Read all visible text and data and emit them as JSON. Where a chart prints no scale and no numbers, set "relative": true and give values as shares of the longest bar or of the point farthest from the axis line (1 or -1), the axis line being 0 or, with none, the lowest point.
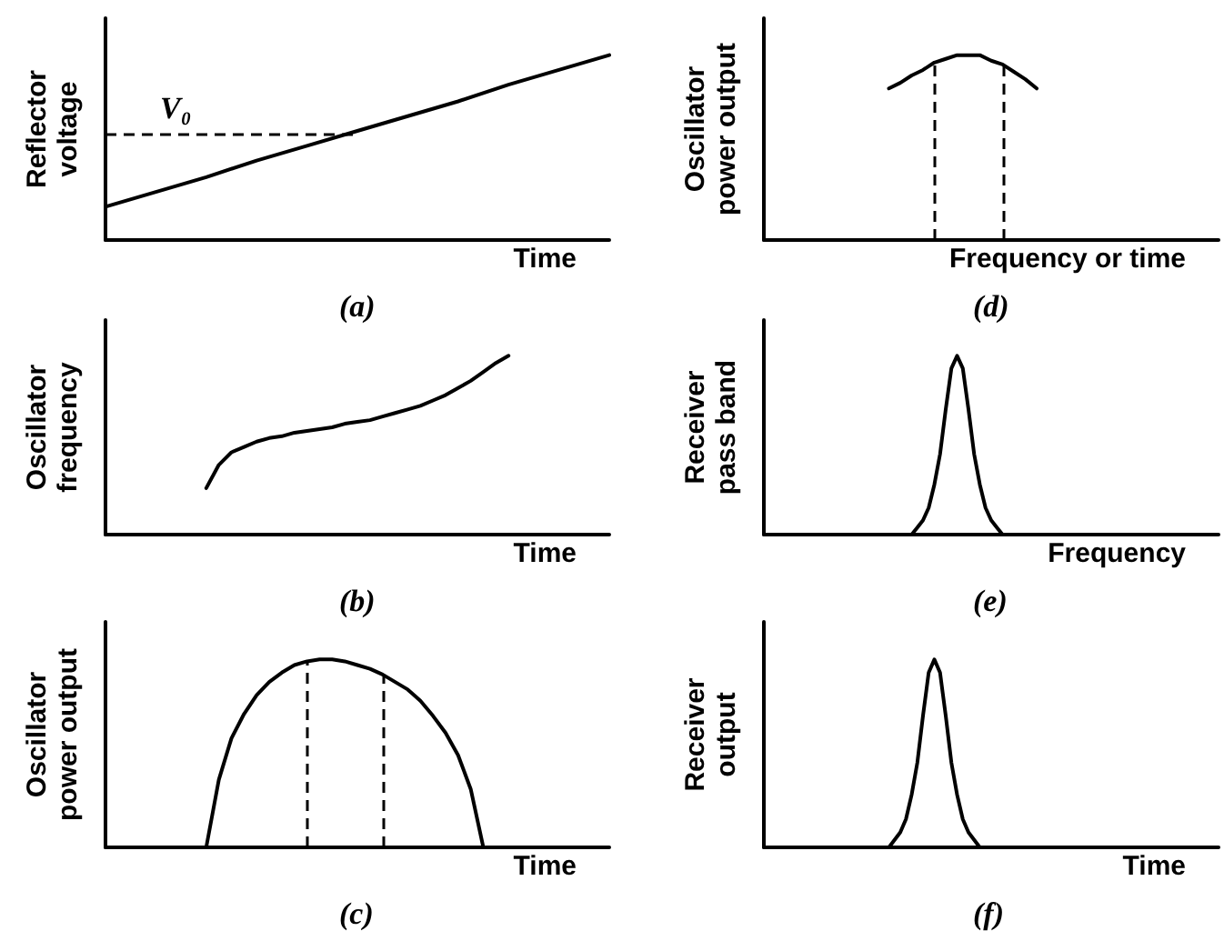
{
  "chart_data": [
    {
      "type": "line",
      "relative": true,
      "marker": "none",
      "ylabel": "Reflector voltage",
      "xlabel": "Time",
      "annotations": [
        "(a)"
      ],
      "categories": [
        null,
        null,
        null,
        null,
        null,
        null,
        null,
        null,
        null,
        null,
        null
      ],
      "series": [
        {
          "color": "#000000",
          "values": [
            0.18,
            0.26,
            0.34,
            0.43,
            0.51,
            0.59,
            0.67,
            0.75,
            0.84,
            0.92,
            1
          ]
        }
      ],
      "ref_lines": [
        {
          "axis": "y",
          "value": 0.57,
          "label": "V₀",
          "line_style": "dashed"
        }
      ]
    },
    {
      "type": "line",
      "relative": true,
      "marker": "none",
      "ylabel": "Oscillator frequency",
      "xlabel": "Time",
      "annotations": [
        "(b)"
      ],
      "categories": [
        null,
        null,
        null,
        null,
        null,
        null,
        null,
        null,
        null,
        null,
        null,
        null,
        null,
        null,
        null,
        null,
        null,
        null,
        null,
        null,
        null,
        null,
        null,
        null,
        null,
        null,
        null,
        null,
        null,
        null,
        null,
        null,
        null,
        null,
        null,
        null,
        null,
        null,
        null,
        null,
        null
      ],
      "series": [
        {
          "color": "#000000",
          "values": [
            null,
            null,
            null,
            null,
            null,
            null,
            null,
            null,
            0.26,
            0.39,
            0.46,
            0.49,
            0.52,
            0.54,
            0.55,
            0.57,
            0.58,
            0.59,
            0.6,
            0.62,
            0.63,
            0.64,
            0.66,
            0.68,
            0.7,
            0.72,
            0.75,
            0.78,
            0.82,
            0.86,
            0.91,
            0.96,
            1,
            null,
            null,
            null,
            null,
            null,
            null,
            null,
            null
          ]
        }
      ]
    },
    {
      "type": "line",
      "relative": true,
      "marker": "none",
      "ylabel": "Oscillator power output",
      "xlabel": "Time",
      "annotations": [
        "(c)"
      ],
      "categories": [
        null,
        null,
        null,
        null,
        null,
        null,
        null,
        null,
        null,
        null,
        null,
        null,
        null,
        null,
        null,
        null,
        null,
        null,
        null,
        null,
        null,
        null,
        null,
        null,
        null,
        null,
        null,
        null,
        null,
        null,
        null,
        null,
        null,
        null,
        null,
        null,
        null,
        null,
        null,
        null,
        null
      ],
      "series": [
        {
          "color": "#000000",
          "values": [
            null,
            null,
            null,
            null,
            null,
            null,
            null,
            null,
            0,
            0.36,
            0.58,
            0.71,
            0.81,
            0.88,
            0.93,
            0.97,
            0.99,
            1,
            1,
            0.99,
            0.97,
            0.95,
            0.92,
            0.88,
            0.84,
            0.78,
            0.7,
            0.61,
            0.49,
            0.31,
            0,
            null,
            null,
            null,
            null,
            null,
            null,
            null,
            null,
            null,
            null
          ]
        }
      ]
    },
    {
      "type": "line",
      "relative": true,
      "marker": "none",
      "ylabel": "Oscillator power output",
      "xlabel": "Frequency or time",
      "annotations": [
        "(d)"
      ],
      "categories": [
        null,
        null,
        null,
        null,
        null,
        null,
        null,
        null,
        null,
        null,
        null,
        null,
        null,
        null,
        null,
        null,
        null,
        null,
        null,
        null,
        null,
        null,
        null,
        null,
        null,
        null,
        null,
        null,
        null,
        null,
        null,
        null,
        null,
        null,
        null,
        null,
        null,
        null,
        null,
        null,
        null
      ],
      "series": [
        {
          "color": "#000000",
          "values": [
            null,
            null,
            null,
            null,
            null,
            null,
            null,
            null,
            null,
            null,
            null,
            0.82,
            0.85,
            0.89,
            0.92,
            0.96,
            0.98,
            1,
            1,
            1,
            0.97,
            0.95,
            0.91,
            0.87,
            0.82,
            null,
            null,
            null,
            null,
            null,
            null,
            null,
            null,
            null,
            null,
            null,
            null,
            null,
            null,
            null,
            null
          ]
        }
      ]
    },
    {
      "type": "line",
      "relative": true,
      "marker": "none",
      "ylabel": "Receiver pass band",
      "xlabel": "Frequency",
      "annotations": [
        "(e)"
      ],
      "categories": [
        null,
        null,
        null,
        null,
        null,
        null,
        null,
        null,
        null,
        null,
        null,
        null,
        null,
        null,
        null,
        null,
        null,
        null,
        null,
        null,
        null,
        null,
        null,
        null,
        null,
        null,
        null,
        null,
        null,
        null,
        null,
        null,
        null,
        null,
        null,
        null,
        null,
        null,
        null,
        null,
        null,
        null,
        null,
        null,
        null,
        null,
        null,
        null,
        null,
        null,
        null,
        null,
        null,
        null,
        null,
        null,
        null,
        null,
        null,
        null,
        null,
        null,
        null,
        null,
        null,
        null,
        null,
        null,
        null,
        null,
        null,
        null,
        null,
        null,
        null,
        null,
        null,
        null,
        null,
        null,
        null
      ],
      "series": [
        {
          "color": "#000000",
          "values": [
            null,
            null,
            null,
            null,
            null,
            null,
            null,
            null,
            null,
            null,
            null,
            null,
            null,
            null,
            null,
            null,
            null,
            null,
            null,
            null,
            null,
            null,
            null,
            null,
            null,
            null,
            0,
            0.04,
            0.08,
            0.15,
            0.28,
            0.45,
            0.7,
            0.93,
            1,
            0.93,
            0.7,
            0.45,
            0.28,
            0.15,
            0.08,
            0.04,
            0,
            null,
            null,
            null,
            null,
            null,
            null,
            null,
            null,
            null,
            null,
            null,
            null,
            null,
            null,
            null,
            null,
            null,
            null,
            null,
            null,
            null,
            null,
            null,
            null,
            null,
            null,
            null,
            null,
            null,
            null,
            null,
            null,
            null,
            null,
            null,
            null,
            null,
            null
          ]
        }
      ]
    },
    {
      "type": "line",
      "relative": true,
      "marker": "none",
      "ylabel": "Receiver output",
      "xlabel": "Time",
      "annotations": [
        "(f)"
      ],
      "categories": [
        null,
        null,
        null,
        null,
        null,
        null,
        null,
        null,
        null,
        null,
        null,
        null,
        null,
        null,
        null,
        null,
        null,
        null,
        null,
        null,
        null,
        null,
        null,
        null,
        null,
        null,
        null,
        null,
        null,
        null,
        null,
        null,
        null,
        null,
        null,
        null,
        null,
        null,
        null,
        null,
        null,
        null,
        null,
        null,
        null,
        null,
        null,
        null,
        null,
        null,
        null,
        null,
        null,
        null,
        null,
        null,
        null,
        null,
        null,
        null,
        null,
        null,
        null,
        null,
        null,
        null,
        null,
        null,
        null,
        null,
        null,
        null,
        null,
        null,
        null,
        null,
        null,
        null,
        null,
        null,
        null
      ],
      "series": [
        {
          "color": "#000000",
          "values": [
            null,
            null,
            null,
            null,
            null,
            null,
            null,
            null,
            null,
            null,
            null,
            null,
            null,
            null,
            null,
            null,
            null,
            null,
            null,
            null,
            null,
            null,
            0,
            0.04,
            0.08,
            0.15,
            0.28,
            0.45,
            0.7,
            0.93,
            1,
            0.93,
            0.7,
            0.45,
            0.28,
            0.15,
            0.08,
            0.04,
            0,
            null,
            null,
            null,
            null,
            null,
            null,
            null,
            null,
            null,
            null,
            null,
            null,
            null,
            null,
            null,
            null,
            null,
            null,
            null,
            null,
            null,
            null,
            null,
            null,
            null,
            null,
            null,
            null,
            null,
            null,
            null,
            null,
            null,
            null,
            null,
            null,
            null,
            null,
            null,
            null,
            null,
            null
          ]
        }
      ]
    }
  ]
}
